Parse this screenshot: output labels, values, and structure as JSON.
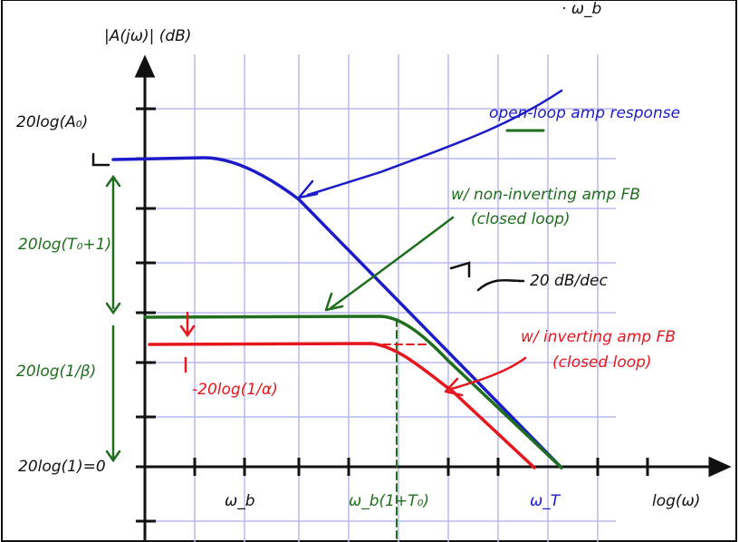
{
  "header": {
    "y_axis_label": "|A(jω)| (dB)",
    "top_note": "· ω_b"
  },
  "y_labels": {
    "a0": "20log(A₀)",
    "t0": "20log(T₀+1)",
    "beta": "20log(1/β)",
    "zero": "20log(1)=0",
    "alpha": "-20log(1/α)"
  },
  "x_labels": {
    "wb": "ω_b",
    "wb_t0": "ω_b(1+T₀)",
    "wt": "ω_T",
    "log": "log(ω)"
  },
  "annotations": {
    "open_loop": "open-loop amp response",
    "noninv": "w/ non-inverting amp FB",
    "noninv_closed": "(closed loop)",
    "slope": "20 dB/dec",
    "inv": "w/ inverting amp FB",
    "inv_closed": "(closed loop)"
  }
}
